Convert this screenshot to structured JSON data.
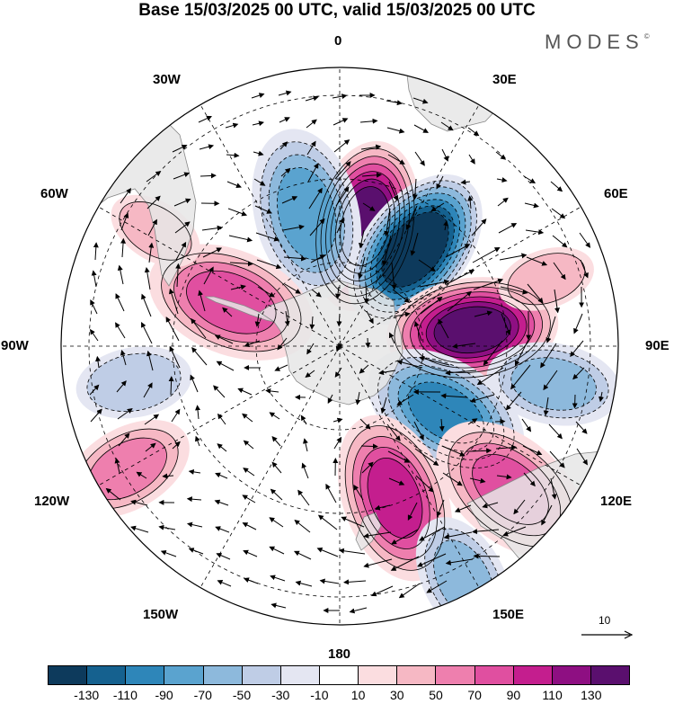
{
  "title": "Base 15/03/2025 00 UTC, valid 15/03/2025 00 UTC",
  "logo_text": "MODES",
  "logo_mark": "©",
  "longitude_labels": {
    "top": "0",
    "lon30e": "30E",
    "lon60e": "60E",
    "lon90e": "90E",
    "lon120e": "120E",
    "lon150e": "150E",
    "bottom": "180",
    "lon150w": "150W",
    "lon120w": "120W",
    "lon90w": "90W",
    "lon60w": "60W",
    "lon30w": "30W"
  },
  "reference_vector_label": "10",
  "colorbar": {
    "colors": [
      "#0d3a5c",
      "#15618f",
      "#2e86b9",
      "#5aa3cf",
      "#8db9dc",
      "#bfcde6",
      "#e4e6f2",
      "#ffffff",
      "#fbdde0",
      "#f6b8c4",
      "#ee7fae",
      "#e04fa0",
      "#c41e8e",
      "#8e0f82",
      "#5a0f6e"
    ],
    "tick_labels": [
      "-130",
      "-110",
      "-90",
      "-70",
      "-50",
      "-30",
      "-10",
      "10",
      "30",
      "50",
      "70",
      "90",
      "110",
      "130"
    ]
  },
  "anomaly_blobs": [
    {
      "lon": 12,
      "colat": 44,
      "value": 125
    },
    {
      "lon": 38,
      "colat": 44,
      "value": -135
    },
    {
      "lon": 83,
      "colat": 48,
      "value": 120
    },
    {
      "lon": 122,
      "colat": 45,
      "value": -80
    },
    {
      "lon": 160,
      "colat": 58,
      "value": 80
    },
    {
      "lon": 130,
      "colat": 80,
      "value": 60
    },
    {
      "lon": -14,
      "colat": 49,
      "value": -65
    },
    {
      "lon": -68,
      "colat": 42,
      "value": 65
    },
    {
      "lon": -100,
      "colat": 75,
      "value": -30
    },
    {
      "lon": 72,
      "colat": 78,
      "value": 20
    },
    {
      "lon": 152,
      "colat": 95,
      "value": -40
    },
    {
      "lon": -120,
      "colat": 88,
      "value": 40
    },
    {
      "lon": -58,
      "colat": 78,
      "value": 20
    },
    {
      "lon": 100,
      "colat": 78,
      "value": -40
    }
  ]
}
